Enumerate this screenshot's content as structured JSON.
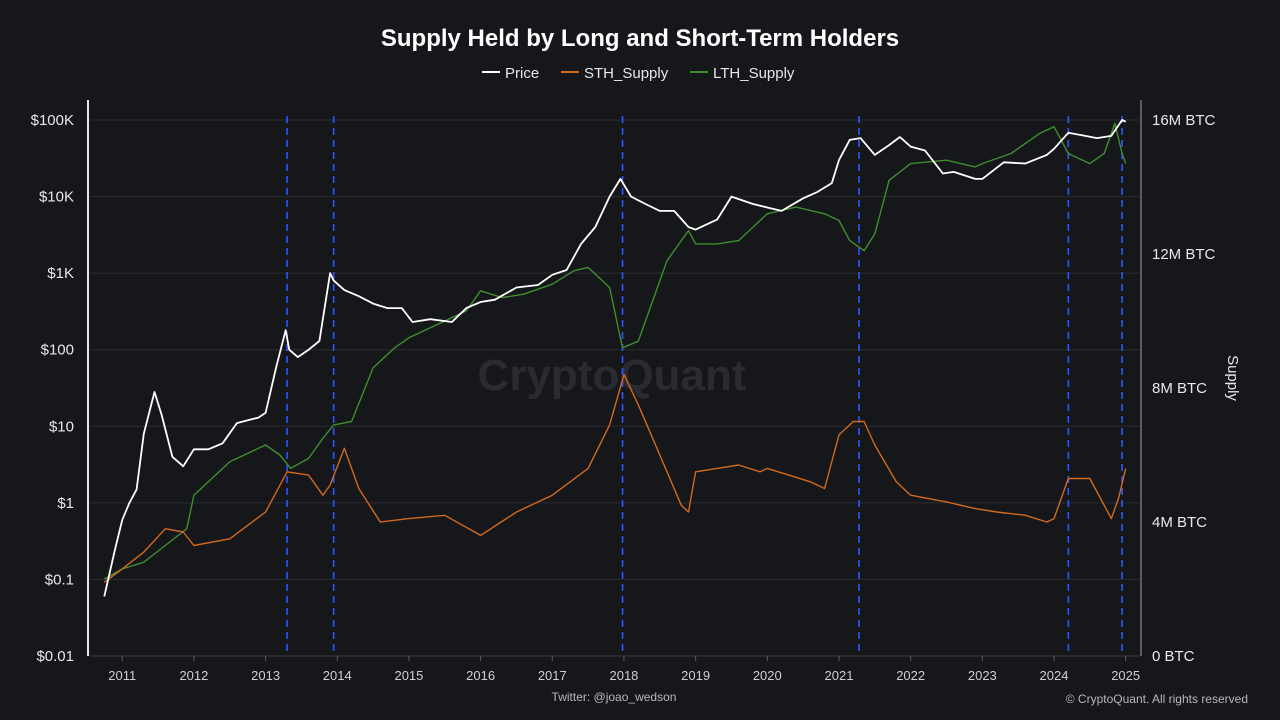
{
  "chart_data": {
    "type": "line",
    "title": "Supply Held by Long and Short-Term Holders",
    "legend": {
      "placement": "top-center",
      "entries": [
        "Price",
        "STH_Supply",
        "LTH_Supply"
      ]
    },
    "x_ticks": [
      "2011",
      "2012",
      "2013",
      "2014",
      "2015",
      "2016",
      "2017",
      "2018",
      "2019",
      "2020",
      "2021",
      "2022",
      "2023",
      "2024",
      "2025"
    ],
    "y_left": {
      "scale": "log",
      "ticks": [
        "$100K",
        "$10K",
        "$1K",
        "$100",
        "$10",
        "$1",
        "$0.1",
        "$0.01"
      ],
      "range": [
        0.01,
        100000
      ]
    },
    "y_right": {
      "label": "Supply",
      "ticks": [
        "16M BTC",
        "12M BTC",
        "8M BTC",
        "4M BTC",
        "0 BTC"
      ],
      "range": [
        0,
        16000000
      ]
    },
    "vertical_markers": [
      2013.3,
      2013.95,
      2017.98,
      2021.28,
      2024.2,
      2024.95
    ],
    "series": [
      {
        "name": "Price",
        "color": "#ffffff",
        "axis": "left",
        "x": [
          2010.75,
          2010.9,
          2011.0,
          2011.1,
          2011.2,
          2011.3,
          2011.45,
          2011.55,
          2011.7,
          2011.85,
          2012.0,
          2012.2,
          2012.4,
          2012.6,
          2012.75,
          2012.9,
          2013.0,
          2013.15,
          2013.28,
          2013.33,
          2013.45,
          2013.6,
          2013.75,
          2013.9,
          2013.95,
          2014.1,
          2014.3,
          2014.5,
          2014.7,
          2014.9,
          2015.05,
          2015.3,
          2015.6,
          2015.8,
          2016.0,
          2016.2,
          2016.5,
          2016.8,
          2017.0,
          2017.2,
          2017.4,
          2017.6,
          2017.8,
          2017.95,
          2018.1,
          2018.3,
          2018.5,
          2018.7,
          2018.9,
          2019.0,
          2019.3,
          2019.5,
          2019.8,
          2020.0,
          2020.2,
          2020.5,
          2020.7,
          2020.9,
          2021.0,
          2021.15,
          2021.3,
          2021.5,
          2021.7,
          2021.85,
          2022.0,
          2022.2,
          2022.45,
          2022.6,
          2022.9,
          2023.0,
          2023.3,
          2023.6,
          2023.9,
          2024.0,
          2024.2,
          2024.4,
          2024.6,
          2024.8,
          2024.95,
          2025.0
        ],
        "y": [
          0.06,
          0.25,
          0.6,
          1.0,
          1.5,
          8,
          28,
          14,
          4,
          3,
          5,
          5,
          6,
          11,
          12,
          13,
          15,
          60,
          180,
          100,
          80,
          100,
          130,
          1000,
          800,
          600,
          500,
          400,
          350,
          350,
          230,
          250,
          230,
          350,
          420,
          450,
          650,
          700,
          950,
          1100,
          2400,
          4000,
          10000,
          17000,
          10000,
          8000,
          6500,
          6500,
          4000,
          3700,
          5000,
          10000,
          8000,
          7200,
          6500,
          9500,
          11500,
          15000,
          30000,
          55000,
          58000,
          35000,
          47000,
          60000,
          45000,
          40000,
          20000,
          21000,
          17000,
          17000,
          28000,
          27000,
          35000,
          42000,
          68000,
          63000,
          58000,
          62000,
          100000,
          95000
        ]
      },
      {
        "name": "STH_Supply",
        "color": "#d2691e",
        "axis": "right",
        "x": [
          2010.75,
          2011.0,
          2011.3,
          2011.6,
          2011.85,
          2012.0,
          2012.5,
          2013.0,
          2013.3,
          2013.6,
          2013.8,
          2013.9,
          2014.1,
          2014.3,
          2014.6,
          2015.0,
          2015.5,
          2016.0,
          2016.5,
          2017.0,
          2017.5,
          2017.8,
          2018.0,
          2018.2,
          2018.5,
          2018.8,
          2018.9,
          2019.0,
          2019.3,
          2019.6,
          2019.9,
          2020.0,
          2020.3,
          2020.6,
          2020.8,
          2021.0,
          2021.2,
          2021.35,
          2021.5,
          2021.8,
          2022.0,
          2022.5,
          2022.9,
          2023.2,
          2023.6,
          2023.9,
          2024.0,
          2024.2,
          2024.5,
          2024.7,
          2024.8,
          2024.9,
          2025.0
        ],
        "y": [
          2200000,
          2600000,
          3100000,
          3800000,
          3700000,
          3300000,
          3500000,
          4300000,
          5500000,
          5400000,
          4800000,
          5100000,
          6200000,
          5000000,
          4000000,
          4100000,
          4200000,
          3600000,
          4300000,
          4800000,
          5600000,
          6900000,
          8400000,
          7500000,
          6000000,
          4500000,
          4300000,
          5500000,
          5600000,
          5700000,
          5500000,
          5600000,
          5400000,
          5200000,
          5000000,
          6600000,
          7000000,
          7000000,
          6300000,
          5200000,
          4800000,
          4600000,
          4400000,
          4300000,
          4200000,
          4000000,
          4100000,
          5300000,
          5300000,
          4500000,
          4100000,
          4700000,
          5600000
        ]
      },
      {
        "name": "LTH_Supply",
        "color": "#3e8e2f",
        "axis": "right",
        "x": [
          2010.75,
          2011.0,
          2011.3,
          2011.6,
          2011.9,
          2012.0,
          2012.5,
          2013.0,
          2013.2,
          2013.35,
          2013.6,
          2013.8,
          2013.95,
          2014.2,
          2014.5,
          2014.8,
          2015.0,
          2015.3,
          2015.8,
          2016.0,
          2016.3,
          2016.6,
          2017.0,
          2017.3,
          2017.5,
          2017.8,
          2017.98,
          2018.2,
          2018.6,
          2018.9,
          2019.0,
          2019.3,
          2019.6,
          2019.9,
          2020.0,
          2020.4,
          2020.8,
          2021.0,
          2021.15,
          2021.35,
          2021.5,
          2021.7,
          2022.0,
          2022.5,
          2022.9,
          2023.0,
          2023.4,
          2023.8,
          2024.0,
          2024.2,
          2024.5,
          2024.7,
          2024.85,
          2024.95,
          2025.0
        ],
        "y": [
          2300000,
          2600000,
          2800000,
          3300000,
          3800000,
          4800000,
          5800000,
          6300000,
          6000000,
          5600000,
          5900000,
          6500000,
          6900000,
          7000000,
          8600000,
          9200000,
          9500000,
          9800000,
          10300000,
          10900000,
          10700000,
          10800000,
          11100000,
          11500000,
          11600000,
          11000000,
          9200000,
          9400000,
          11800000,
          12700000,
          12300000,
          12300000,
          12400000,
          13000000,
          13200000,
          13400000,
          13200000,
          13000000,
          12400000,
          12100000,
          12600000,
          14200000,
          14700000,
          14800000,
          14600000,
          14700000,
          15000000,
          15600000,
          15800000,
          15000000,
          14700000,
          15000000,
          15900000,
          15000000,
          14700000
        ]
      }
    ]
  },
  "watermark": "CryptoQuant",
  "footer": {
    "credit": "Twitter: @joao_wedson",
    "copyright": "© CryptoQuant. All rights reserved"
  }
}
